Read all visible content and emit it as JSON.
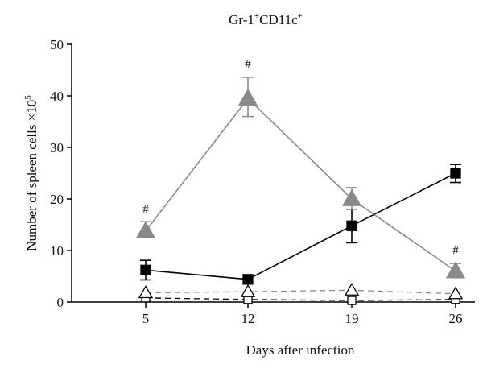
{
  "chart_data": {
    "type": "line",
    "title": "Gr-1",
    "title_sup1": "+",
    "title_mid": "CD11c",
    "title_sup2": "+",
    "xlabel": "Days after infection",
    "ylabel": "Number of spleen cells ×10",
    "ylabel_sup": "5",
    "x": [
      5,
      12,
      19,
      26
    ],
    "x_tick_labels": [
      "5",
      "12",
      "19",
      "26"
    ],
    "ylim": [
      0,
      50
    ],
    "y_ticks": [
      0,
      10,
      20,
      30,
      40,
      50
    ],
    "y_tick_labels": [
      "0",
      "10",
      "20",
      "30",
      "40",
      "50"
    ],
    "grid": false,
    "series": [
      {
        "marker": "filled-triangle",
        "line": "solid",
        "color": "#8a8a8a",
        "values": [
          13.8,
          39.5,
          20.0,
          6.0
        ],
        "err_low": [
          13.8,
          36.0,
          18.0,
          6.0
        ],
        "err_high": [
          15.6,
          43.6,
          22.2,
          7.5
        ]
      },
      {
        "marker": "filled-square",
        "line": "solid",
        "color": "#000000",
        "values": [
          6.2,
          4.4,
          14.8,
          25.0
        ],
        "err_low": [
          4.3,
          4.4,
          11.5,
          23.2
        ],
        "err_high": [
          8.1,
          4.4,
          18.0,
          26.7
        ]
      },
      {
        "marker": "open-triangle",
        "line": "dashed",
        "color": "#8a8a8a",
        "values": [
          1.8,
          2.0,
          2.3,
          1.6
        ]
      },
      {
        "marker": "open-square",
        "line": "dashed",
        "color": "#000000",
        "values": [
          0.8,
          0.5,
          0.3,
          0.5
        ]
      }
    ],
    "annotations": [
      {
        "text": "#",
        "x": 5,
        "y": 17.3
      },
      {
        "text": "#",
        "x": 12,
        "y": 45.5
      },
      {
        "text": "#",
        "x": 26,
        "y": 9.3
      }
    ]
  }
}
